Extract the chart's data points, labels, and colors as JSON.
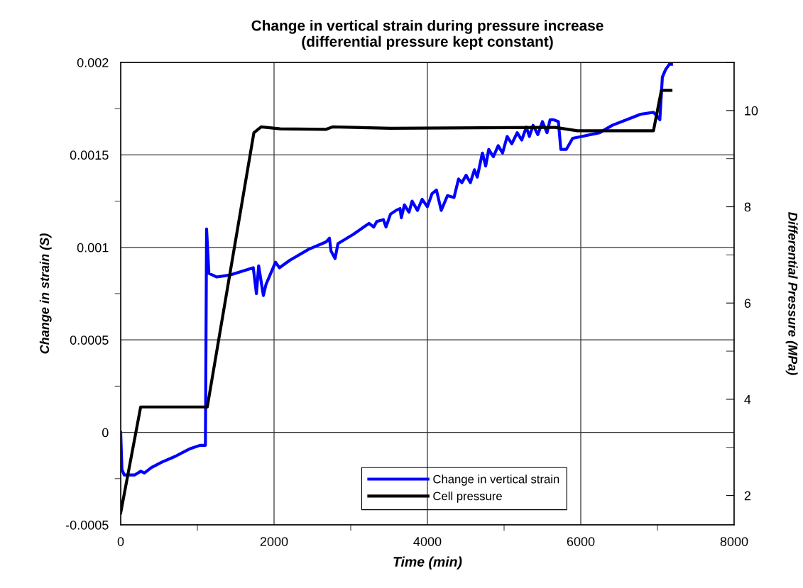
{
  "chart_data": {
    "type": "line",
    "title": "Change in vertical strain during pressure increase\n(differential pressure kept constant)",
    "xlabel": "Time (min)",
    "ylabel": "Change in strain (S)",
    "y2label": "Differential Pressure (MPa)",
    "xlim": [
      0,
      8000
    ],
    "xticks": [
      0,
      2000,
      4000,
      6000,
      8000,
      {
        "value": 1000,
        "label": null
      },
      {
        "value": 3000,
        "label": null
      },
      {
        "value": 5000,
        "label": null
      },
      {
        "value": 7000,
        "label": null
      }
    ],
    "ylim": [
      -0.0005,
      0.002
    ],
    "yticks": [
      {
        "value": -0.0005,
        "label": "-0.0005"
      },
      {
        "value": 0,
        "label": "0"
      },
      {
        "value": 0.0005,
        "label": "0.0005"
      },
      {
        "value": 0.001,
        "label": "0.001"
      },
      {
        "value": 0.0015,
        "label": "0.0015"
      },
      {
        "value": 0.002,
        "label": "0.002"
      },
      {
        "value": -0.00025,
        "label": null
      },
      {
        "value": 0.00025,
        "label": null
      },
      {
        "value": 0.00075,
        "label": null
      },
      {
        "value": 0.00125,
        "label": null
      },
      {
        "value": 0.00175,
        "label": null
      }
    ],
    "y2lim": [
      1.39,
      11
    ],
    "y2ticks": [
      2,
      4,
      6,
      8,
      10,
      {
        "value": 3,
        "label": null
      },
      {
        "value": 5,
        "label": null
      },
      {
        "value": 7,
        "label": null
      },
      {
        "value": 9,
        "label": null
      },
      {
        "value": 11,
        "label": null
      }
    ],
    "grid": true,
    "legend": "bottom",
    "marker": "none",
    "line_style": "solid",
    "series": [
      {
        "name": "Change in vertical strain",
        "color": "#0000ff",
        "x": [
          0,
          16,
          46,
          185,
          262,
          309,
          401,
          540,
          710,
          895,
          1034,
          1105,
          1120,
          1150,
          1253,
          1418,
          1729,
          1770,
          1799,
          1861,
          1895,
          2019,
          2070,
          2205,
          2453,
          2680,
          2722,
          2743,
          2796,
          2833,
          3032,
          3239,
          3300,
          3340,
          3426,
          3460,
          3519,
          3591,
          3643,
          3660,
          3700,
          3760,
          3800,
          3870,
          3931,
          4000,
          4060,
          4118,
          4180,
          4262,
          4347,
          4406,
          4450,
          4504,
          4560,
          4613,
          4650,
          4717,
          4760,
          4800,
          4860,
          4923,
          4980,
          5040,
          5100,
          5171,
          5230,
          5290,
          5330,
          5378,
          5440,
          5500,
          5560,
          5600,
          5646,
          5708,
          5740,
          5812,
          5894,
          6019,
          6245,
          6411,
          6658,
          6782,
          6948,
          6994,
          7031,
          7064,
          7105,
          7155,
          7183
        ],
        "values": [
          0,
          -0.0002,
          -0.00023,
          -0.00023,
          -0.00021,
          -0.00022,
          -0.00019,
          -0.00016,
          -0.00013,
          -9e-05,
          -7e-05,
          -7e-05,
          0.0011,
          0.00086,
          0.00084,
          0.00085,
          0.00089,
          0.00075,
          0.0009,
          0.00074,
          0.0008,
          0.00092,
          0.00089,
          0.00093,
          0.00099,
          0.00103,
          0.00105,
          0.00098,
          0.00094,
          0.00102,
          0.00107,
          0.00113,
          0.00111,
          0.00114,
          0.00115,
          0.00111,
          0.00118,
          0.0012,
          0.00121,
          0.00116,
          0.00123,
          0.00119,
          0.00125,
          0.0012,
          0.00126,
          0.00122,
          0.00129,
          0.00131,
          0.0012,
          0.00128,
          0.00127,
          0.00137,
          0.00135,
          0.00139,
          0.00135,
          0.00142,
          0.00138,
          0.00151,
          0.00144,
          0.00153,
          0.00149,
          0.00155,
          0.00151,
          0.0016,
          0.00156,
          0.00162,
          0.00158,
          0.00165,
          0.0016,
          0.00166,
          0.00161,
          0.00168,
          0.00162,
          0.00169,
          0.00169,
          0.00168,
          0.00153,
          0.00153,
          0.00159,
          0.0016,
          0.00162,
          0.00166,
          0.0017,
          0.00172,
          0.00173,
          0.00171,
          0.00169,
          0.00192,
          0.00196,
          0.00199,
          0.00199
        ]
      },
      {
        "name": "Cell pressure",
        "color": "#000000",
        "axis": "y2",
        "x": [
          0,
          260,
          1129,
          1737,
          1832,
          2080,
          2680,
          2763,
          3519,
          5667,
          5956,
          6948,
          7051,
          7176
        ],
        "values": [
          1.64,
          3.84,
          3.84,
          9.54,
          9.66,
          9.62,
          9.61,
          9.66,
          9.63,
          9.65,
          9.58,
          9.58,
          10.42,
          10.42
        ]
      }
    ]
  }
}
